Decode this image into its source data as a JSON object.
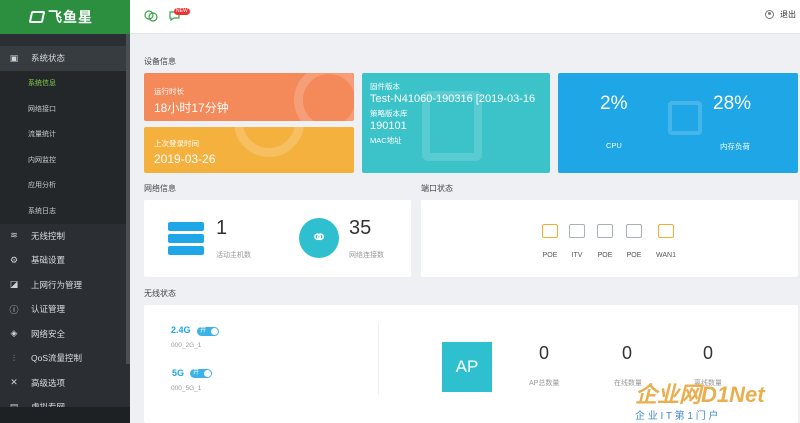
{
  "brand": {
    "name": "飞鱼星"
  },
  "topbar": {
    "new_badge": "NEW",
    "logout": "退出"
  },
  "sidebar": {
    "groups": [
      {
        "label": "系统状态",
        "icon": "monitor-icon",
        "open": true,
        "children": [
          "系统信息",
          "网络接口",
          "流量统计",
          "内网监控",
          "应用分析",
          "系统日志"
        ],
        "active": 0
      },
      {
        "label": "无线控制",
        "icon": "wifi-icon"
      },
      {
        "label": "基础设置",
        "icon": "gear-icon"
      },
      {
        "label": "上网行为管理",
        "icon": "chart-icon"
      },
      {
        "label": "认证管理",
        "icon": "info-icon"
      },
      {
        "label": "网络安全",
        "icon": "shield-icon"
      },
      {
        "label": "QoS流量控制",
        "icon": "equalizer-icon"
      },
      {
        "label": "高级选项",
        "icon": "tools-icon"
      },
      {
        "label": "虚拟专网",
        "icon": "vpn-icon"
      }
    ]
  },
  "device": {
    "title": "设备信息",
    "uptime_label": "运行时长",
    "uptime": "18小时17分钟",
    "lastlogin_label": "上次登录时间",
    "lastlogin": "2019-03-26",
    "firmware_label": "固件版本",
    "firmware": "Test-N41060-190316 [2019-03-16",
    "policy_label": "策略版本库",
    "policy": "190101",
    "mac_label": "MAC地址",
    "cpu_value": "2%",
    "cpu_label": "CPU",
    "mem_value": "28%",
    "mem_label": "内存负荷",
    "colors": {
      "uptime": "#f4895a",
      "login": "#f5b13e",
      "firmware": "#3cc3c9",
      "cpu": "#1ea6e6"
    }
  },
  "network": {
    "title": "网络信息",
    "hosts_value": "1",
    "hosts_label": "活动主机数",
    "conn_value": "35",
    "conn_label": "网络连接数"
  },
  "ports": {
    "title": "端口状态",
    "items": [
      {
        "label": "POE",
        "active": true
      },
      {
        "label": "ITV",
        "active": false
      },
      {
        "label": "POE",
        "active": false
      },
      {
        "label": "POE",
        "active": false
      },
      {
        "label": "WAN1",
        "active": true
      }
    ]
  },
  "wireless": {
    "title": "无线状态",
    "band24": "2.4G",
    "band24_state": "开",
    "ssid24": "000_2G_1",
    "band5": "5G",
    "band5_state": "开",
    "ssid5": "000_5G_1",
    "ap_badge": "AP",
    "ap_total": "0",
    "ap_total_label": "AP总数量",
    "online": "0",
    "online_label": "在线数量",
    "offline": "0",
    "offline_label": "离线数量"
  },
  "watermark": {
    "main": "企业网D1Net",
    "sub": "企 业 I T 第 1 门 户"
  }
}
